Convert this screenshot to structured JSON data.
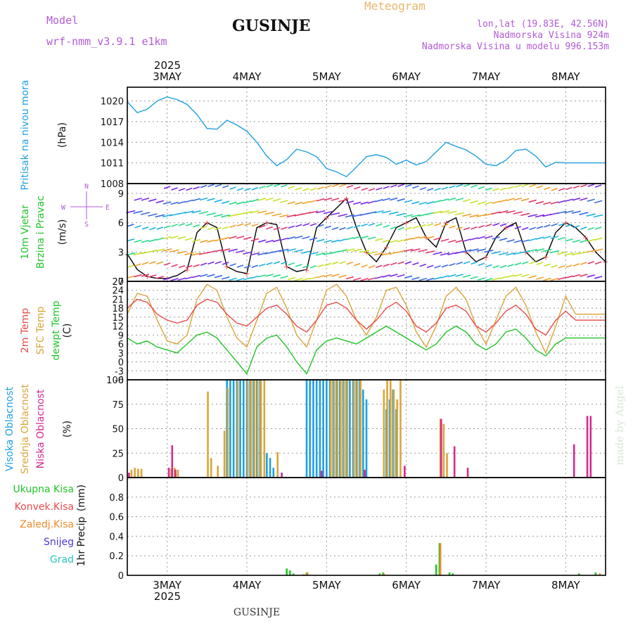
{
  "header": {
    "model_label": "Model",
    "model_value": "wrf-nmm_v3.9.1 e1km",
    "location": "GUSINJE",
    "title": "Meteogram",
    "lonlat": "lon,lat (19.83E, 42.56N)",
    "elevation": "Nadmorska Visina 924m",
    "model_elevation": "Nadmorska Visina u modelu 996.153m",
    "year_top": "2025",
    "year_bottom": "2025",
    "footer_location": "GUSINJE",
    "watermark": "made by Angel"
  },
  "colors": {
    "pressure": "#1f9fe0",
    "t2m": "#e84a4a",
    "tsfc": "#d9a53a",
    "dewpt": "#22c42a",
    "wind_speed": "#000000",
    "high_cloud": "#1f9fe0",
    "mid_cloud": "#d9a53a",
    "low_cloud": "#d42a8e",
    "precip_total": "#22c42a",
    "precip_conv": "#e84a4a",
    "precip_frozen": "#f08a2a",
    "precip_snow": "#4a3ad9",
    "precip_grad": "#2ac4c4",
    "header_purple": "#b25ad6",
    "meteogram_orange": "#e8b66a"
  },
  "chart_data": {
    "type": "line",
    "x": {
      "days": [
        "3MAY",
        "4MAY",
        "5MAY",
        "6MAY",
        "7MAY",
        "8MAY"
      ],
      "start_hour": 12,
      "range_hours": [
        -12,
        132
      ]
    },
    "panels": [
      {
        "id": "pressure",
        "ylabel": "Pritisak na nivou mora",
        "unit": "(hPa)",
        "ylim": [
          1008,
          1022
        ],
        "yticks": [
          "1008",
          "1011",
          "1014",
          "1017",
          "1020"
        ],
        "series": [
          {
            "key": "pressure",
            "hours": [
              -12,
              -9,
              -6,
              -3,
              0,
              3,
              6,
              9,
              12,
              15,
              18,
              21,
              24,
              27,
              30,
              33,
              36,
              39,
              42,
              45,
              48,
              51,
              54,
              57,
              60,
              63,
              66,
              69,
              72,
              75,
              78,
              81,
              84,
              87,
              90,
              93,
              96,
              99,
              102,
              105,
              108,
              111,
              114,
              117,
              120,
              123,
              126,
              129,
              132
            ],
            "values": [
              1019.9,
              1018.3,
              1018.8,
              1020.0,
              1020.6,
              1020.2,
              1019.5,
              1018.0,
              1016.0,
              1015.9,
              1017.2,
              1016.5,
              1015.6,
              1014.0,
              1012.0,
              1010.6,
              1011.5,
              1013.0,
              1012.6,
              1011.9,
              1010.2,
              1009.7,
              1009.0,
              1010.4,
              1011.9,
              1012.2,
              1011.8,
              1010.8,
              1011.4,
              1010.7,
              1011.2,
              1012.6,
              1014.0,
              1013.4,
              1012.9,
              1012.0,
              1010.8,
              1010.6,
              1011.4,
              1012.8,
              1013.0,
              1012.0,
              1010.4,
              1011.1,
              1011.0,
              1011.0,
              1011.0,
              1011.0,
              1011.0
            ]
          }
        ]
      },
      {
        "id": "wind",
        "ylabel": "10m Vjetar",
        "ylabel2": "Brzina i Pravac",
        "unit": "(m/s)",
        "ylim": [
          0,
          10
        ],
        "yticks": [
          "0",
          "3",
          "6",
          "9"
        ],
        "compass": {
          "n": "N",
          "s": "S",
          "e": "E",
          "w": "W"
        },
        "series": [
          {
            "key": "wind_speed",
            "hours": [
              -12,
              -9,
              -6,
              -3,
              0,
              3,
              6,
              9,
              12,
              15,
              18,
              21,
              24,
              27,
              30,
              33,
              36,
              39,
              42,
              45,
              48,
              51,
              54,
              57,
              60,
              63,
              66,
              69,
              72,
              75,
              78,
              81,
              84,
              87,
              90,
              93,
              96,
              99,
              102,
              105,
              108,
              111,
              114,
              117,
              120,
              123,
              126,
              129,
              132
            ],
            "values": [
              2.8,
              1.2,
              0.5,
              0.3,
              0.3,
              0.6,
              1.2,
              5.0,
              6.0,
              5.5,
              1.5,
              1.0,
              0.8,
              5.5,
              6.0,
              5.8,
              1.5,
              1.0,
              1.2,
              5.5,
              6.5,
              7.5,
              8.5,
              5.5,
              3.0,
              2.0,
              3.5,
              5.5,
              6.0,
              6.5,
              4.5,
              3.5,
              6.0,
              6.5,
              3.0,
              2.0,
              2.5,
              4.5,
              5.5,
              6.0,
              3.0,
              2.0,
              2.5,
              5.0,
              6.0,
              5.5,
              4.5,
              3.0,
              2.0
            ]
          }
        ]
      },
      {
        "id": "temperature",
        "ylabel": "2m Temp",
        "ylabel2": "SFC Temp",
        "ylabel3": "dewpt Temp",
        "unit": "(C)",
        "ylim": [
          -6,
          27
        ],
        "yticks": [
          "-6",
          "-3",
          "0",
          "3",
          "6",
          "9",
          "12",
          "15",
          "18",
          "21",
          "24",
          "27"
        ],
        "series": [
          {
            "key": "tsfc",
            "hours": [
              -12,
              -9,
              -6,
              -3,
              0,
              3,
              6,
              9,
              12,
              15,
              18,
              21,
              24,
              27,
              30,
              33,
              36,
              39,
              42,
              45,
              48,
              51,
              54,
              57,
              60,
              63,
              66,
              69,
              72,
              75,
              78,
              81,
              84,
              87,
              90,
              93,
              96,
              99,
              102,
              105,
              108,
              111,
              114,
              117,
              120,
              123,
              126,
              129,
              132
            ],
            "values": [
              16,
              23,
              22,
              14,
              7,
              6,
              9,
              21,
              26,
              24,
              15,
              8,
              5,
              14,
              23,
              25,
              18,
              9,
              5,
              14,
              24,
              26,
              22,
              14,
              9,
              15,
              24,
              25,
              19,
              10,
              5,
              12,
              22,
              25,
              21,
              12,
              6,
              14,
              22,
              25,
              19,
              10,
              3,
              12,
              22,
              16,
              16,
              16,
              16
            ]
          },
          {
            "key": "t2m",
            "hours": [
              -12,
              -9,
              -6,
              -3,
              0,
              3,
              6,
              9,
              12,
              15,
              18,
              21,
              24,
              27,
              30,
              33,
              36,
              39,
              42,
              45,
              48,
              51,
              54,
              57,
              60,
              63,
              66,
              69,
              72,
              75,
              78,
              81,
              84,
              87,
              90,
              93,
              96,
              99,
              102,
              105,
              108,
              111,
              114,
              117,
              120,
              123,
              126,
              129,
              132
            ],
            "values": [
              18,
              21,
              20,
              16,
              14,
              13,
              14,
              19,
              21,
              20,
              16,
              13,
              12,
              15,
              18,
              19,
              16,
              12,
              10,
              14,
              19,
              20,
              18,
              14,
              11,
              14,
              18,
              20,
              17,
              12,
              10,
              13,
              18,
              19,
              17,
              12,
              10,
              13,
              17,
              19,
              16,
              11,
              9,
              14,
              17,
              14,
              14,
              14,
              14
            ]
          },
          {
            "key": "dewpt",
            "hours": [
              -12,
              -9,
              -6,
              -3,
              0,
              3,
              6,
              9,
              12,
              15,
              18,
              21,
              24,
              27,
              30,
              33,
              36,
              39,
              42,
              45,
              48,
              51,
              54,
              57,
              60,
              63,
              66,
              69,
              72,
              75,
              78,
              81,
              84,
              87,
              90,
              93,
              96,
              99,
              102,
              105,
              108,
              111,
              114,
              117,
              120,
              123,
              126,
              129,
              132
            ],
            "values": [
              8,
              6,
              7,
              5,
              4,
              3,
              6,
              9,
              10,
              8,
              4,
              0,
              -4,
              5,
              8,
              9,
              5,
              0,
              -4,
              4,
              7,
              8,
              7,
              6,
              8,
              10,
              12,
              10,
              8,
              6,
              4,
              6,
              10,
              12,
              10,
              6,
              4,
              6,
              10,
              11,
              8,
              4,
              2,
              6,
              8,
              8,
              8,
              8,
              8
            ]
          }
        ]
      },
      {
        "id": "cloud",
        "ylabel": "Visoka Oblacnost",
        "ylabel2": "Srednja Oblacnost",
        "ylabel3": "Niska Oblacnost",
        "unit": "(%)",
        "ylim": [
          0,
          100
        ],
        "yticks": [
          "0",
          "25",
          "50",
          "75",
          "100"
        ],
        "bars": [
          {
            "key": "high_cloud",
            "hours": [
              18,
              19,
              20,
              21,
              22,
              23,
              24,
              25,
              26,
              27,
              28,
              30,
              31,
              32,
              42,
              43,
              44,
              45,
              46,
              47,
              48,
              49,
              50,
              51,
              52,
              53,
              54,
              55,
              56,
              57,
              58,
              59,
              60,
              66,
              67,
              68,
              69
            ],
            "values": [
              100,
              100,
              100,
              100,
              100,
              100,
              100,
              100,
              100,
              100,
              100,
              25,
              20,
              10,
              100,
              100,
              100,
              100,
              100,
              100,
              100,
              100,
              100,
              100,
              100,
              100,
              100,
              100,
              100,
              100,
              100,
              90,
              80,
              70,
              80,
              90,
              70
            ]
          },
          {
            "key": "mid_cloud",
            "hours": [
              -11,
              -10,
              -9,
              -8,
              1,
              2,
              3,
              12,
              13,
              15,
              17,
              18,
              21,
              24,
              25,
              26,
              27,
              28,
              29,
              33,
              49,
              50,
              51,
              52,
              53,
              54,
              56,
              57,
              58,
              65,
              66,
              67,
              68,
              69,
              70,
              82,
              83,
              84
            ],
            "values": [
              8,
              10,
              9,
              9,
              9,
              10,
              8,
              88,
              20,
              12,
              48,
              92,
              100,
              100,
              100,
              100,
              100,
              100,
              100,
              26,
              100,
              100,
              100,
              100,
              100,
              100,
              100,
              100,
              100,
              90,
              100,
              100,
              90,
              80,
              100,
              60,
              55,
              25
            ]
          },
          {
            "key": "low_cloud",
            "hours": [
              -12,
              0,
              1,
              2,
              34,
              46,
              59,
              71,
              82,
              86,
              90,
              122,
              126,
              127
            ],
            "values": [
              5,
              10,
              33,
              8,
              5,
              7,
              8,
              12,
              60,
              32,
              10,
              34,
              63,
              63
            ]
          }
        ]
      },
      {
        "id": "precip",
        "ylabel": "1hr Precip",
        "unit": "(mm)",
        "ylim": [
          0,
          1
        ],
        "yticks": [
          "0",
          "0.2",
          "0.4",
          "0.6",
          "0.8"
        ],
        "legend": [
          "Ukupna Kisa",
          "Konvek.Kisa",
          "Zaledj.Kisa",
          "Snijeg",
          "Grad"
        ],
        "bars": [
          {
            "key": "precip_total",
            "hours": [
              36,
              37,
              38,
              41,
              42,
              64,
              65,
              81,
              82,
              85,
              86,
              124,
              129
            ],
            "values": [
              0.07,
              0.05,
              0.02,
              0.01,
              0.03,
              0.02,
              0.03,
              0.11,
              0.33,
              0.03,
              0.02,
              0.02,
              0.03
            ]
          },
          {
            "key": "precip_frozen",
            "hours": [
              41,
              42,
              65,
              82,
              130
            ],
            "values": [
              0.01,
              0.03,
              0.02,
              0.33,
              0.02
            ]
          }
        ]
      }
    ]
  }
}
